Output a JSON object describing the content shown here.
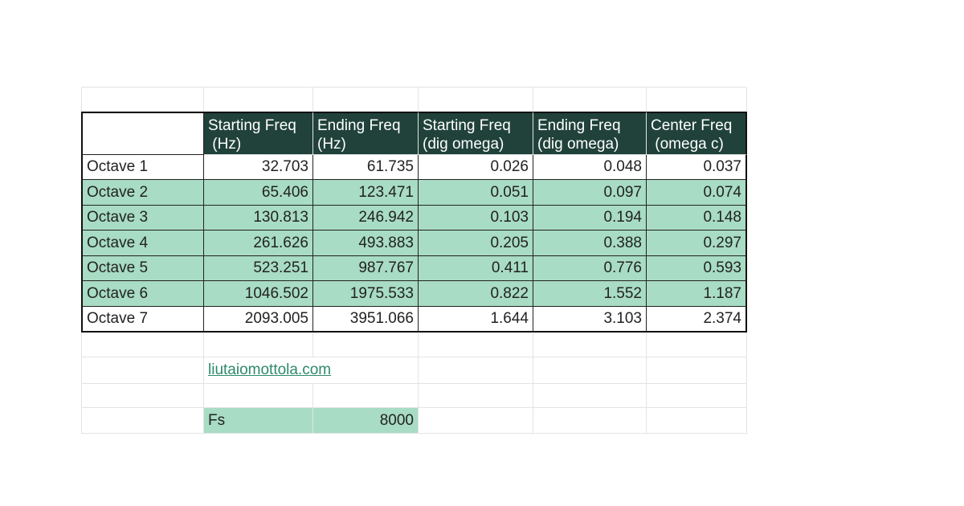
{
  "table": {
    "headers": [
      "",
      "Starting Freq\n (Hz)",
      "Ending Freq\n(Hz)",
      "Starting Freq\n(dig omega)",
      "Ending Freq\n(dig omega)",
      "Center Freq\n (omega c)"
    ],
    "rows": [
      [
        "Octave 1",
        "32.703",
        "61.735",
        "0.026",
        "0.048",
        "0.037"
      ],
      [
        "Octave 2",
        "65.406",
        "123.471",
        "0.051",
        "0.097",
        "0.074"
      ],
      [
        "Octave 3",
        "130.813",
        "246.942",
        "0.103",
        "0.194",
        "0.148"
      ],
      [
        "Octave 4",
        "261.626",
        "493.883",
        "0.205",
        "0.388",
        "0.297"
      ],
      [
        "Octave 5",
        "523.251",
        "987.767",
        "0.411",
        "0.776",
        "0.593"
      ],
      [
        "Octave 6",
        "1046.502",
        "1975.533",
        "0.822",
        "1.552",
        "1.187"
      ],
      [
        "Octave 7",
        "2093.005",
        "3951.066",
        "1.644",
        "3.103",
        "2.374"
      ]
    ]
  },
  "link": {
    "text": "liutaiomottola.com"
  },
  "fs": {
    "label": "Fs",
    "value": "8000"
  },
  "colors": {
    "header_bg": "#20423a",
    "header_text": "#ffffff",
    "row_fill": "#a8dcc4",
    "link": "#2d8a6a"
  }
}
